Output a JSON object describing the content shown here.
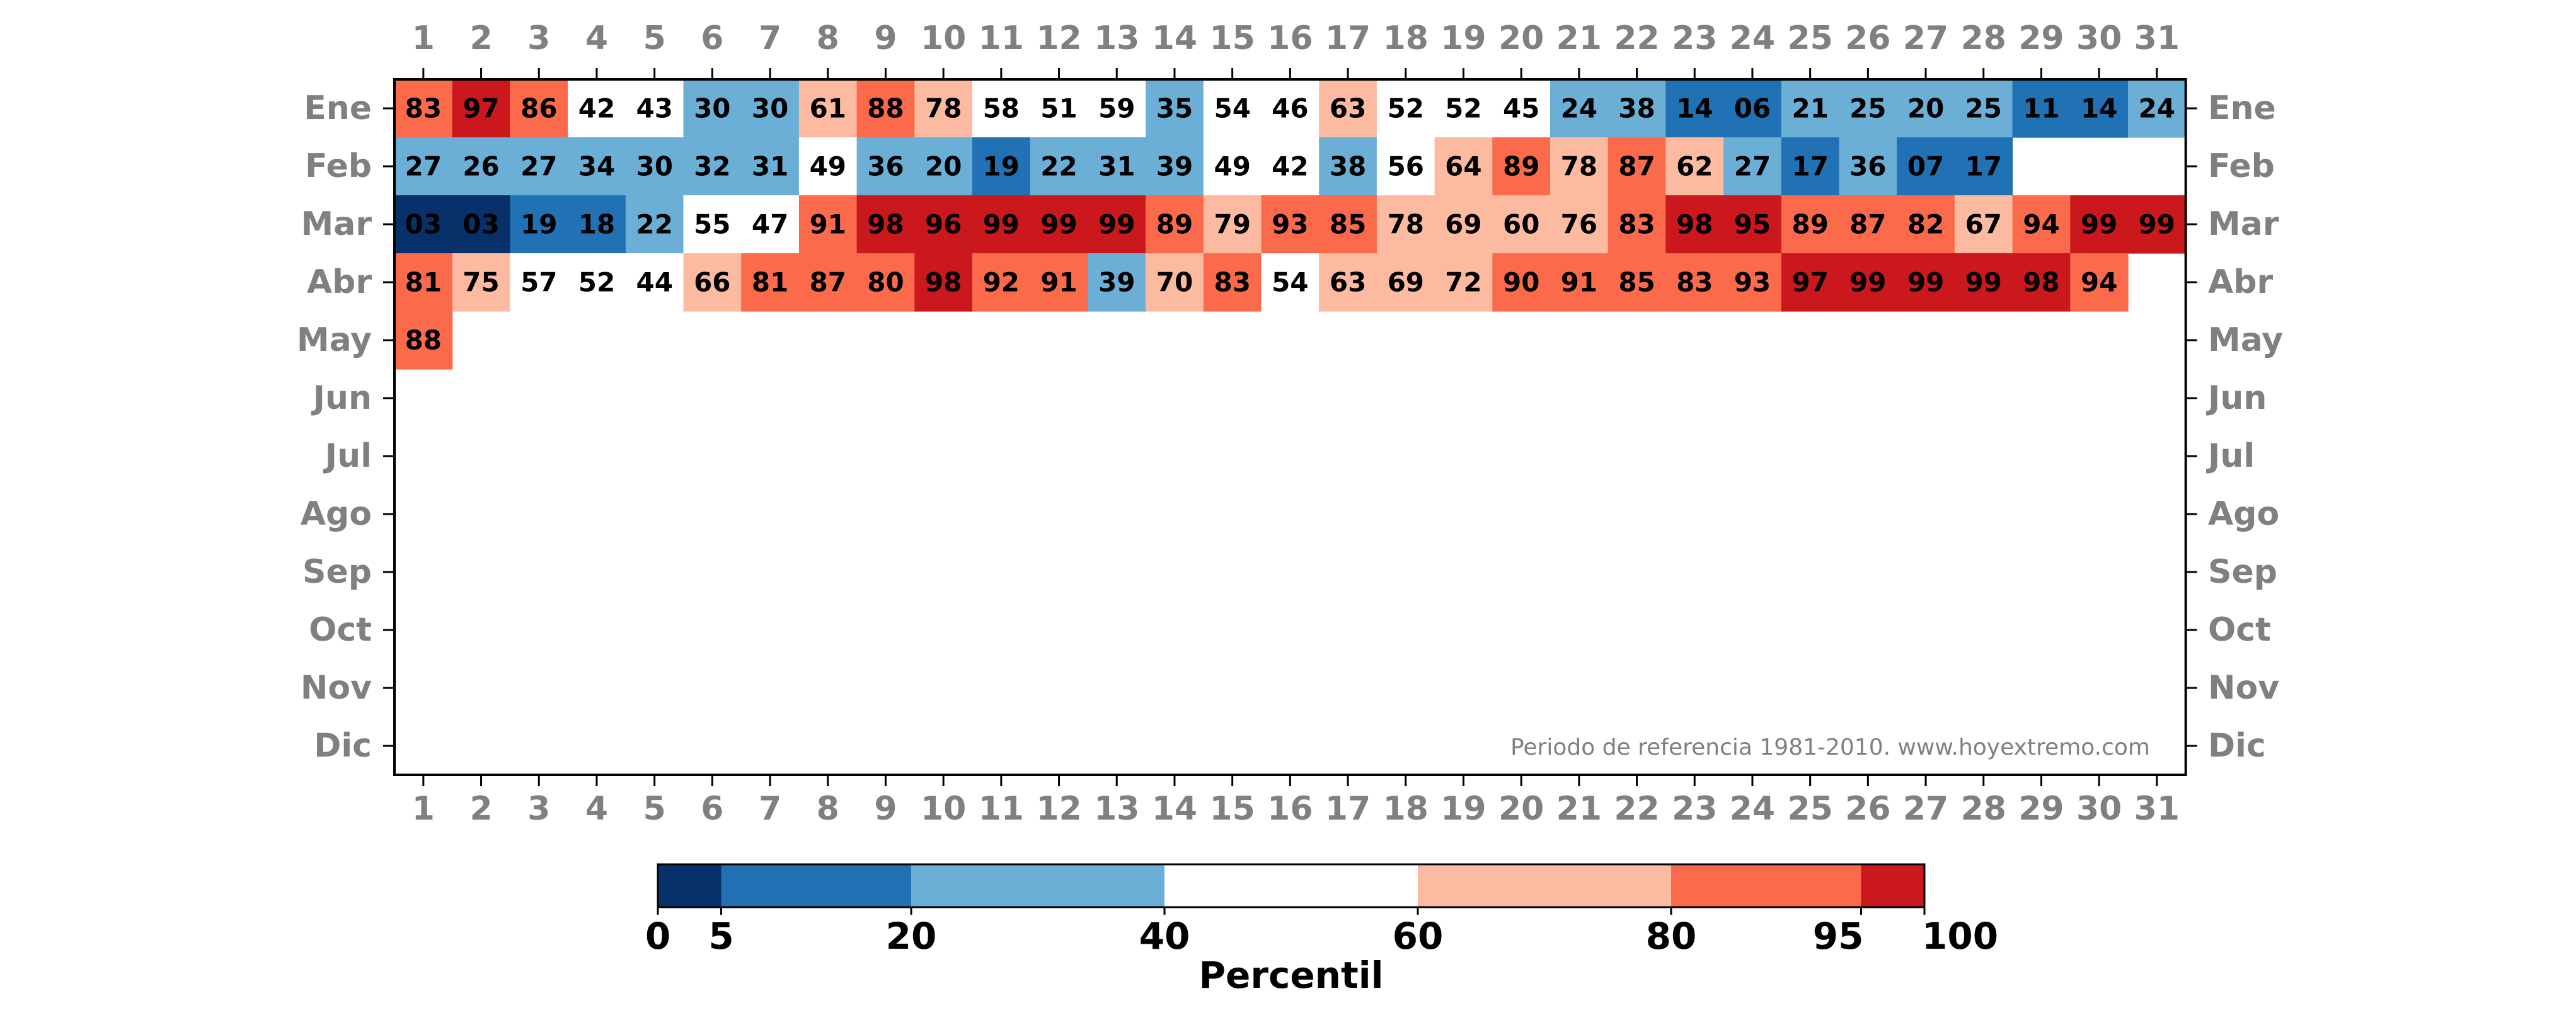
{
  "chart_data": {
    "type": "heatmap",
    "days": [
      1,
      2,
      3,
      4,
      5,
      6,
      7,
      8,
      9,
      10,
      11,
      12,
      13,
      14,
      15,
      16,
      17,
      18,
      19,
      20,
      21,
      22,
      23,
      24,
      25,
      26,
      27,
      28,
      29,
      30,
      31
    ],
    "months": [
      "Ene",
      "Feb",
      "Mar",
      "Abr",
      "May",
      "Jun",
      "Jul",
      "Ago",
      "Sep",
      "Oct",
      "Nov",
      "Dic"
    ],
    "values": [
      [
        "83",
        "97",
        "86",
        "42",
        "43",
        "30",
        "30",
        "61",
        "88",
        "78",
        "58",
        "51",
        "59",
        "35",
        "54",
        "46",
        "63",
        "52",
        "52",
        "45",
        "24",
        "38",
        "14",
        "06",
        "21",
        "25",
        "20",
        "25",
        "11",
        "14",
        "24"
      ],
      [
        "27",
        "26",
        "27",
        "34",
        "30",
        "32",
        "31",
        "49",
        "36",
        "20",
        "19",
        "22",
        "31",
        "39",
        "49",
        "42",
        "38",
        "56",
        "64",
        "89",
        "78",
        "87",
        "62",
        "27",
        "17",
        "36",
        "07",
        "17"
      ],
      [
        "03",
        "03",
        "19",
        "18",
        "22",
        "55",
        "47",
        "91",
        "98",
        "96",
        "99",
        "99",
        "99",
        "89",
        "79",
        "93",
        "85",
        "78",
        "69",
        "60",
        "76",
        "83",
        "98",
        "95",
        "89",
        "87",
        "82",
        "67",
        "94",
        "99",
        "99"
      ],
      [
        "81",
        "75",
        "57",
        "52",
        "44",
        "66",
        "81",
        "87",
        "80",
        "98",
        "92",
        "91",
        "39",
        "70",
        "83",
        "54",
        "63",
        "69",
        "72",
        "90",
        "91",
        "85",
        "83",
        "93",
        "97",
        "99",
        "99",
        "99",
        "98",
        "94"
      ],
      [
        "88"
      ],
      [],
      [],
      [],
      [],
      [],
      [],
      []
    ],
    "note": "Periodo de referencia 1981-2010. www.hoyextremo.com",
    "colorbar": {
      "label": "Percentil",
      "boundaries": [
        0,
        5,
        20,
        40,
        60,
        80,
        95,
        100
      ],
      "tick_labels": [
        "0",
        "5",
        "20",
        "40",
        "60",
        "80",
        "95",
        "100"
      ],
      "colors": [
        "#08306b",
        "#2171b5",
        "#6baed6",
        "#ffffff",
        "#fcbba1",
        "#fb6a4a",
        "#cb181d"
      ]
    }
  }
}
